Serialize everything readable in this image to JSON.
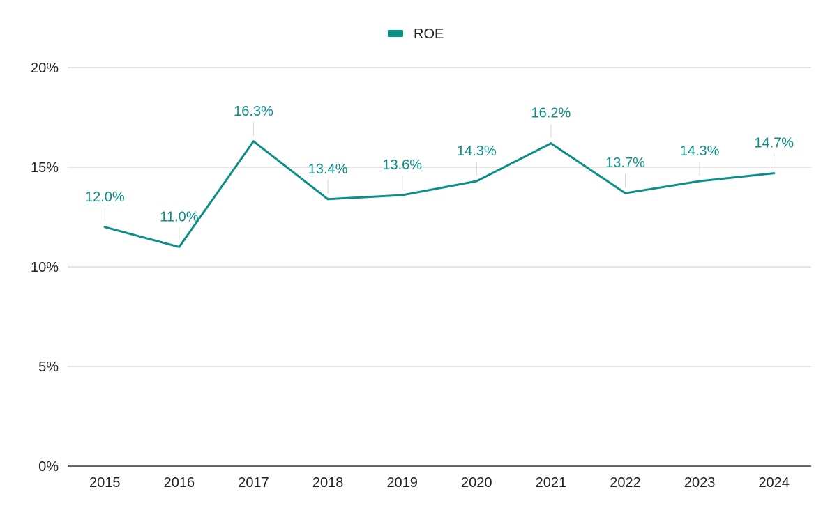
{
  "chart_data": {
    "type": "line",
    "categories": [
      "2015",
      "2016",
      "2017",
      "2018",
      "2019",
      "2020",
      "2021",
      "2022",
      "2023",
      "2024"
    ],
    "series": [
      {
        "name": "ROE",
        "values": [
          12.0,
          11.0,
          16.3,
          13.4,
          13.6,
          14.3,
          16.2,
          13.7,
          14.3,
          14.7
        ],
        "labels": [
          "12.0%",
          "11.0%",
          "16.3%",
          "13.4%",
          "13.6%",
          "14.3%",
          "16.2%",
          "13.7%",
          "14.3%",
          "14.7%"
        ],
        "color": "#0b8f86"
      }
    ],
    "y_ticks": [
      0,
      5,
      10,
      15,
      20
    ],
    "y_tick_labels": [
      "0%",
      "5%",
      "10%",
      "15%",
      "20%"
    ],
    "ylim": [
      0,
      20
    ],
    "title": "",
    "xlabel": "",
    "ylabel": "",
    "grid": true,
    "legend": "top-center"
  }
}
